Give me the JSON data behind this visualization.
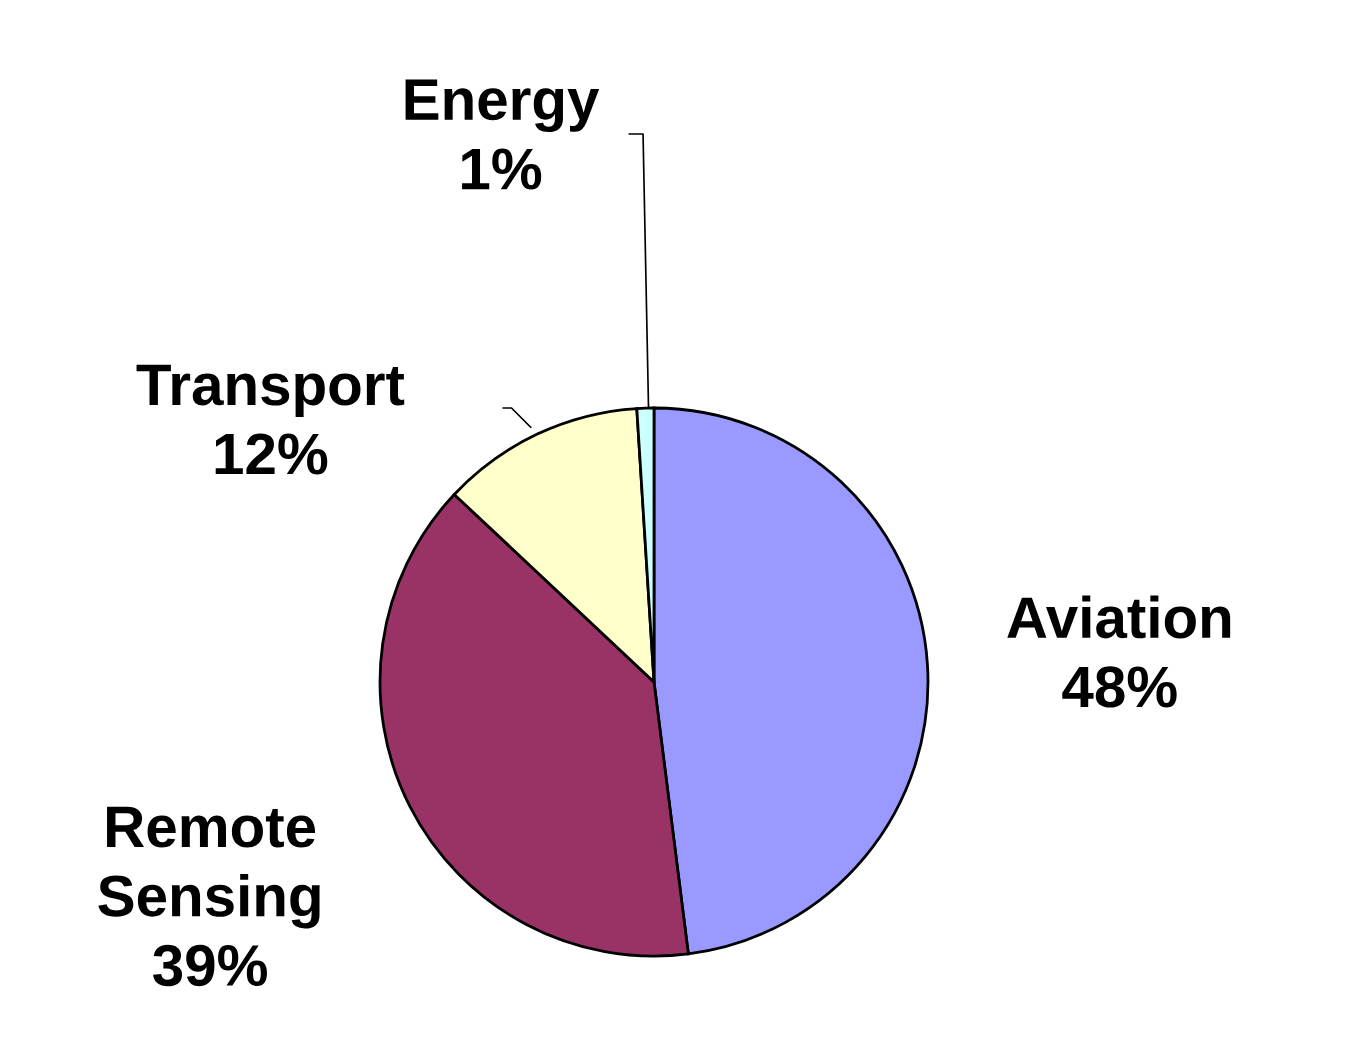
{
  "chart_data": {
    "type": "pie",
    "categories": [
      "Aviation",
      "Remote Sensing",
      "Transport",
      "Energy"
    ],
    "values": [
      48,
      39,
      12,
      1
    ],
    "value_labels": [
      "48%",
      "39%",
      "12%",
      "1%"
    ],
    "colors": [
      "#9999ff",
      "#993366",
      "#ffffcc",
      "#ccffff"
    ]
  }
}
